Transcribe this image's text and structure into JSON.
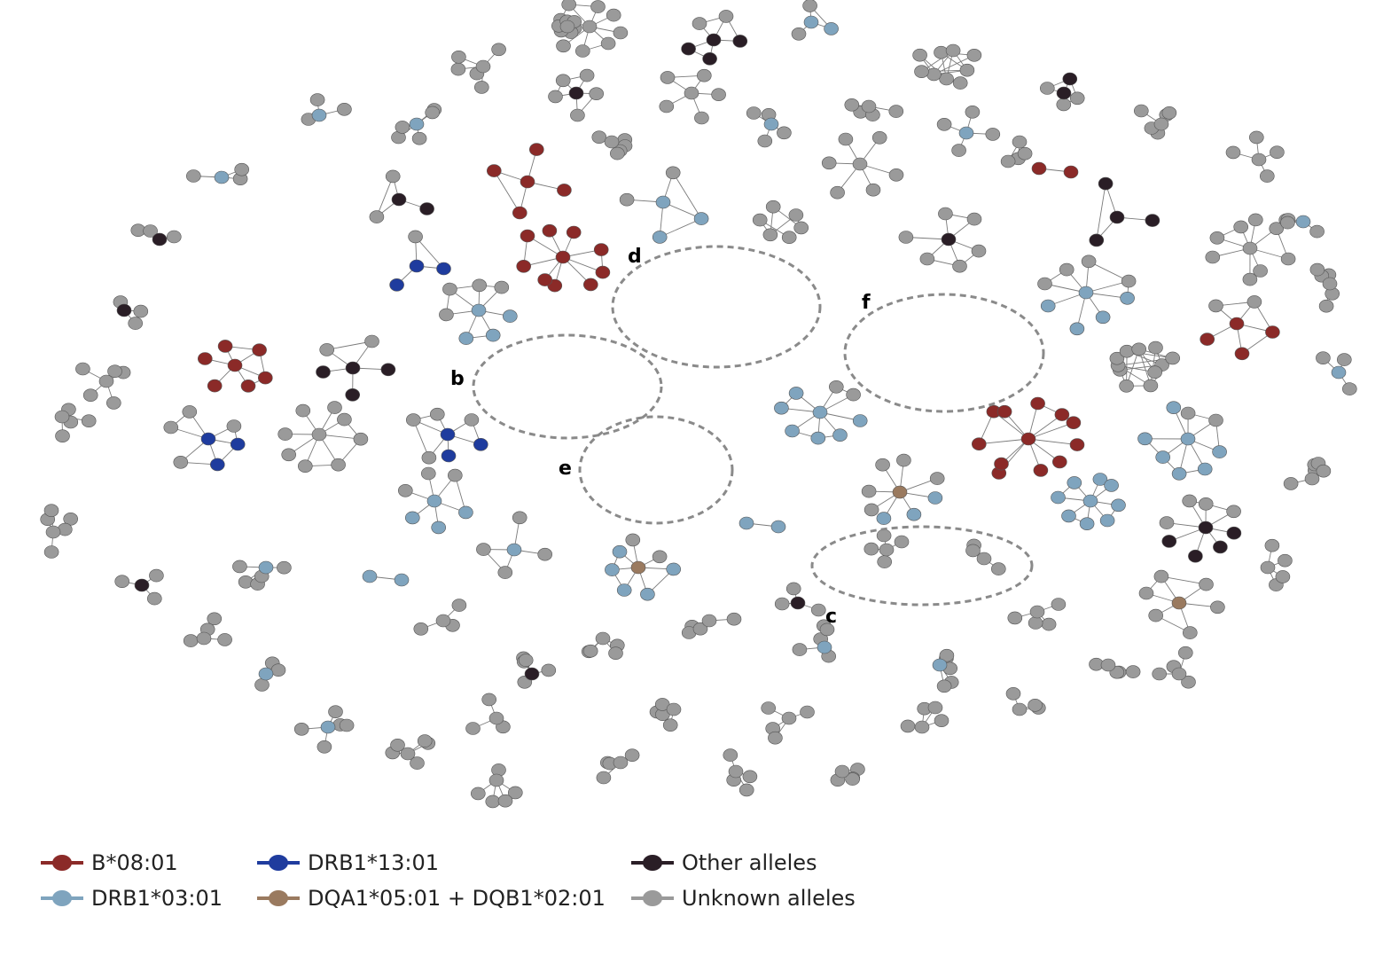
{
  "colors": {
    "b0801": "#8b2a28",
    "drb10301": "#7fa4be",
    "drb11301": "#1f3c9e",
    "dqa_dqb": "#9a7a5f",
    "other": "#2a1e26",
    "unknown": "#9a9a9a",
    "edge": "#7a7a7a",
    "circle": "#8a8a8a"
  },
  "regions": [
    {
      "label": "b"
    },
    {
      "label": "c"
    },
    {
      "label": "d"
    },
    {
      "label": "e"
    },
    {
      "label": "f"
    }
  ],
  "legend": [
    {
      "label": "B*08:01",
      "color_key": "b0801"
    },
    {
      "label": "DRB1*13:01",
      "color_key": "drb11301"
    },
    {
      "label": "Other alleles",
      "color_key": "other"
    },
    {
      "label": "DRB1*03:01",
      "color_key": "drb10301"
    },
    {
      "label": "DQA1*05:01 + DQB1*02:01",
      "color_key": "dqa_dqb"
    },
    {
      "label": "Unknown alleles",
      "color_key": "unknown"
    }
  ],
  "clusters": [
    {
      "type": "star",
      "hub": "U",
      "leaves": "UUUUUUUU"
    },
    {
      "type": "star",
      "hub": "O",
      "leaves": "OOOUU"
    },
    {
      "type": "star",
      "hub": "L",
      "leaves": "LUU"
    },
    {
      "type": "mesh",
      "nodes": "UUUUUUUUU"
    },
    {
      "type": "star",
      "hub": "O",
      "leaves": "UUUO"
    },
    {
      "type": "star",
      "hub": "O",
      "leaves": "UUUUU"
    },
    {
      "type": "star",
      "hub": "U",
      "leaves": "UUUUU"
    },
    {
      "type": "star",
      "hub": "U",
      "leaves": "UUUUUU"
    },
    {
      "type": "star",
      "hub": "L",
      "leaves": "UUUU"
    },
    {
      "type": "pair",
      "nodes": "RR"
    },
    {
      "type": "star",
      "hub": "O",
      "leaves": "OUU"
    },
    {
      "type": "star",
      "hub": "R",
      "leaves": "RRRR"
    },
    {
      "type": "star",
      "hub": "L",
      "leaves": "LLUU"
    },
    {
      "type": "mesh",
      "nodes": "UUUUUU"
    },
    {
      "type": "star",
      "hub": "O",
      "leaves": "UUUUUU"
    },
    {
      "type": "star",
      "hub": "R",
      "leaves": "RRRRRRRRR"
    },
    {
      "type": "star",
      "hub": "L",
      "leaves": "LLLLUUUU"
    },
    {
      "type": "star",
      "hub": "B",
      "leaves": "BBU"
    },
    {
      "type": "star",
      "hub": "L",
      "leaves": "LLLUUUU"
    },
    {
      "type": "star",
      "hub": "U",
      "leaves": "UUUUUUUU"
    },
    {
      "type": "mesh",
      "nodes": "UUUUUUUUUUU"
    },
    {
      "type": "star",
      "hub": "R",
      "leaves": "RRRUU"
    },
    {
      "type": "star",
      "hub": "L",
      "leaves": "LLLLLLUU"
    },
    {
      "type": "star",
      "hub": "O",
      "leaves": "OOOOUUUU"
    },
    {
      "type": "star",
      "hub": "R",
      "leaves": "RRRRRRRRRRR"
    },
    {
      "type": "star",
      "hub": "L",
      "leaves": "LLLLLLLL"
    },
    {
      "type": "star",
      "hub": "D",
      "leaves": "LLLUUUUU"
    },
    {
      "type": "star",
      "hub": "B",
      "leaves": "BBUUUU"
    },
    {
      "type": "star",
      "hub": "D",
      "leaves": "LLLLLUU"
    },
    {
      "type": "star",
      "hub": "L",
      "leaves": "LLLLLLUU"
    },
    {
      "type": "star",
      "hub": "O",
      "leaves": "OOOUU"
    },
    {
      "type": "star",
      "hub": "U",
      "leaves": "UUUUUUUU"
    },
    {
      "type": "star",
      "hub": "L",
      "leaves": "LLLUUU"
    },
    {
      "type": "star",
      "hub": "B",
      "leaves": "BBUUUU"
    },
    {
      "type": "star",
      "hub": "R",
      "leaves": "RRRRRR"
    },
    {
      "type": "pair",
      "nodes": "LL"
    },
    {
      "type": "star",
      "hub": "L",
      "leaves": "UUUU"
    },
    {
      "type": "star",
      "hub": "D",
      "leaves": "UUUUUU"
    },
    {
      "type": "star",
      "hub": "O",
      "leaves": "OOO"
    },
    {
      "type": "pair",
      "nodes": "LL"
    },
    {
      "type": "star",
      "hub": "U",
      "leaves": "UUUUUU"
    }
  ]
}
